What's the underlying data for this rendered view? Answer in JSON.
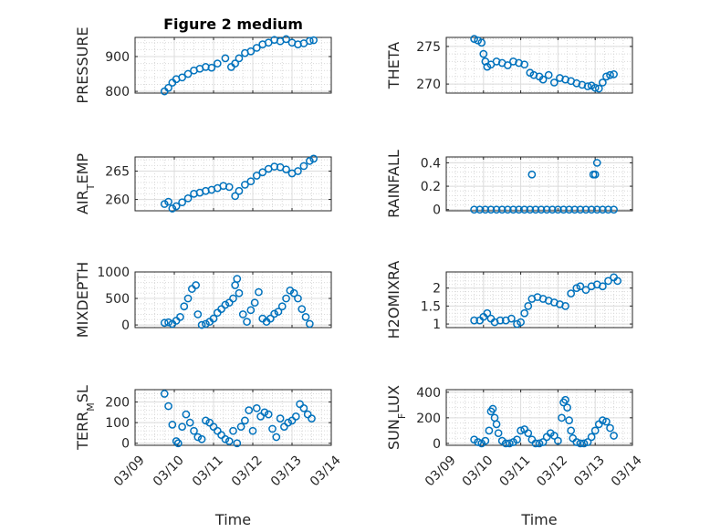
{
  "chart_data": [
    {
      "type": "scatter",
      "title": "Figure 2 medium",
      "ylabel": "PRESSURE",
      "ylabel_sub": "",
      "ylim": [
        795,
        955
      ],
      "yticks": [
        800,
        900
      ],
      "xlim": [
        0,
        5
      ],
      "xticks": [
        "03/09",
        "03/10",
        "03/11",
        "03/12",
        "03/13",
        "03/14"
      ],
      "show_xticklabels": false,
      "xlabel": "",
      "x": [
        0.75,
        0.85,
        0.95,
        1.05,
        1.2,
        1.35,
        1.5,
        1.65,
        1.8,
        1.95,
        2.1,
        2.3,
        2.45,
        2.55,
        2.65,
        2.8,
        2.95,
        3.1,
        3.25,
        3.4,
        3.55,
        3.7,
        3.85,
        4.0,
        4.15,
        4.3,
        4.45,
        4.55
      ],
      "values": [
        800,
        810,
        825,
        835,
        840,
        850,
        860,
        865,
        870,
        868,
        880,
        895,
        870,
        880,
        895,
        910,
        915,
        925,
        935,
        940,
        948,
        944,
        950,
        940,
        935,
        938,
        945,
        947
      ]
    },
    {
      "type": "scatter",
      "title": "",
      "ylabel": "THETA",
      "ylabel_sub": "",
      "ylim": [
        268.8,
        276.2
      ],
      "yticks": [
        270,
        275
      ],
      "xlim": [
        0,
        5
      ],
      "xticks": [
        "03/09",
        "03/10",
        "03/11",
        "03/12",
        "03/13",
        "03/14"
      ],
      "show_xticklabels": false,
      "xlabel": "",
      "x": [
        0.75,
        0.85,
        0.95,
        1.0,
        1.05,
        1.1,
        1.2,
        1.35,
        1.5,
        1.65,
        1.8,
        1.95,
        2.1,
        2.25,
        2.35,
        2.5,
        2.6,
        2.75,
        2.9,
        3.05,
        3.2,
        3.35,
        3.5,
        3.65,
        3.8,
        3.9,
        4.0,
        4.1,
        4.2,
        4.3,
        4.4,
        4.5
      ],
      "values": [
        276,
        275.8,
        275.5,
        274,
        273,
        272.3,
        272.6,
        273,
        272.8,
        272.5,
        273,
        272.8,
        272.6,
        271.5,
        271.2,
        271,
        270.6,
        271.2,
        270.2,
        270.8,
        270.6,
        270.4,
        270.1,
        269.9,
        269.7,
        269.8,
        269.5,
        269.4,
        270.2,
        271,
        271.2,
        271.3
      ]
    },
    {
      "type": "scatter",
      "title": "",
      "ylabel": "AIR",
      "ylabel_sub": "T",
      "ylabel_suffix": "EMP",
      "ylim": [
        258,
        267.5
      ],
      "yticks": [
        260,
        265
      ],
      "xlim": [
        0,
        5
      ],
      "xticks": [
        "03/09",
        "03/10",
        "03/11",
        "03/12",
        "03/13",
        "03/14"
      ],
      "show_xticklabels": false,
      "xlabel": "",
      "x": [
        0.75,
        0.85,
        0.95,
        1.05,
        1.2,
        1.35,
        1.5,
        1.65,
        1.8,
        1.95,
        2.1,
        2.25,
        2.4,
        2.55,
        2.65,
        2.8,
        2.95,
        3.1,
        3.25,
        3.4,
        3.55,
        3.7,
        3.85,
        4.0,
        4.15,
        4.3,
        4.45,
        4.55
      ],
      "values": [
        259.2,
        259.6,
        258.4,
        258.8,
        259.5,
        260.2,
        261,
        261.2,
        261.5,
        261.7,
        262,
        262.4,
        262.2,
        260.6,
        261.5,
        262.6,
        263.2,
        264.2,
        264.8,
        265.4,
        265.8,
        265.7,
        265.3,
        264.6,
        265,
        265.9,
        266.8,
        267.2
      ]
    },
    {
      "type": "scatter",
      "title": "",
      "ylabel": "RAINFALL",
      "ylabel_sub": "",
      "ylim": [
        -0.01,
        0.45
      ],
      "yticks": [
        0,
        0.2,
        0.4
      ],
      "xlim": [
        0,
        5
      ],
      "xticks": [
        "03/09",
        "03/10",
        "03/11",
        "03/12",
        "03/13",
        "03/14"
      ],
      "show_xticklabels": false,
      "xlabel": "",
      "x": [
        0.75,
        0.9,
        1.05,
        1.2,
        1.35,
        1.5,
        1.65,
        1.8,
        1.95,
        2.1,
        2.25,
        2.4,
        2.55,
        2.7,
        2.85,
        3.0,
        3.15,
        3.3,
        3.45,
        3.6,
        3.75,
        3.9,
        4.05,
        4.2,
        4.35,
        4.5,
        2.3,
        3.95,
        4.0,
        4.05
      ],
      "values": [
        0,
        0,
        0,
        0,
        0,
        0,
        0,
        0,
        0,
        0,
        0,
        0,
        0,
        0,
        0,
        0,
        0,
        0,
        0,
        0,
        0,
        0,
        0,
        0,
        0,
        0,
        0.3,
        0.3,
        0.3,
        0.4
      ]
    },
    {
      "type": "scatter",
      "title": "",
      "ylabel": "MIXDEPTH",
      "ylabel_sub": "",
      "ylim": [
        -50,
        1000
      ],
      "yticks": [
        0,
        500,
        1000
      ],
      "xlim": [
        0,
        5
      ],
      "xticks": [
        "03/09",
        "03/10",
        "03/11",
        "03/12",
        "03/13",
        "03/14"
      ],
      "show_xticklabels": false,
      "xlabel": "",
      "x": [
        0.75,
        0.85,
        0.95,
        1.05,
        1.15,
        1.25,
        1.35,
        1.45,
        1.55,
        1.6,
        1.7,
        1.8,
        1.9,
        2.0,
        2.1,
        2.2,
        2.3,
        2.4,
        2.5,
        2.55,
        2.6,
        2.65,
        2.75,
        2.85,
        2.95,
        3.05,
        3.15,
        3.25,
        3.35,
        3.45,
        3.55,
        3.65,
        3.75,
        3.85,
        3.95,
        4.05,
        4.15,
        4.25,
        4.35,
        4.45
      ],
      "values": [
        40,
        50,
        20,
        80,
        150,
        350,
        500,
        680,
        750,
        200,
        0,
        20,
        60,
        120,
        230,
        300,
        380,
        420,
        500,
        750,
        870,
        600,
        200,
        60,
        280,
        420,
        620,
        120,
        60,
        120,
        210,
        250,
        350,
        500,
        650,
        600,
        500,
        300,
        150,
        20
      ]
    },
    {
      "type": "scatter",
      "title": "",
      "ylabel": "H2OMIXRA",
      "ylabel_sub": "",
      "ylim": [
        0.9,
        2.45
      ],
      "yticks": [
        1,
        1.5,
        2
      ],
      "xlim": [
        0,
        5
      ],
      "xticks": [
        "03/09",
        "03/10",
        "03/11",
        "03/12",
        "03/13",
        "03/14"
      ],
      "show_xticklabels": false,
      "xlabel": "",
      "x": [
        0.75,
        0.9,
        1.0,
        1.1,
        1.2,
        1.3,
        1.45,
        1.6,
        1.75,
        1.9,
        2.0,
        2.1,
        2.2,
        2.3,
        2.45,
        2.6,
        2.75,
        2.9,
        3.05,
        3.2,
        3.35,
        3.5,
        3.6,
        3.75,
        3.9,
        4.05,
        4.2,
        4.35,
        4.5,
        4.6
      ],
      "values": [
        1.1,
        1.1,
        1.2,
        1.3,
        1.15,
        1.05,
        1.1,
        1.1,
        1.15,
        1.0,
        1.05,
        1.3,
        1.5,
        1.7,
        1.75,
        1.7,
        1.65,
        1.6,
        1.55,
        1.5,
        1.85,
        2.0,
        2.05,
        1.95,
        2.05,
        2.1,
        2.05,
        2.2,
        2.3,
        2.2
      ]
    },
    {
      "type": "scatter",
      "title": "",
      "ylabel": "TERR",
      "ylabel_sub": "M",
      "ylabel_suffix": "SL",
      "ylim": [
        -10,
        260
      ],
      "yticks": [
        0,
        100,
        200
      ],
      "xlim": [
        0,
        5
      ],
      "xticks": [
        "03/09",
        "03/10",
        "03/11",
        "03/12",
        "03/13",
        "03/14"
      ],
      "show_xticklabels": true,
      "xlabel": "Time",
      "x": [
        0.75,
        0.85,
        0.95,
        1.05,
        1.1,
        1.2,
        1.3,
        1.4,
        1.5,
        1.6,
        1.7,
        1.8,
        1.9,
        2.0,
        2.1,
        2.2,
        2.3,
        2.4,
        2.5,
        2.6,
        2.7,
        2.8,
        2.9,
        3.0,
        3.1,
        3.2,
        3.3,
        3.4,
        3.5,
        3.6,
        3.7,
        3.8,
        3.9,
        4.0,
        4.1,
        4.2,
        4.3,
        4.4,
        4.5
      ],
      "values": [
        240,
        180,
        90,
        10,
        0,
        80,
        140,
        100,
        60,
        30,
        20,
        110,
        100,
        80,
        60,
        40,
        20,
        10,
        60,
        0,
        80,
        110,
        160,
        60,
        170,
        130,
        150,
        140,
        70,
        30,
        120,
        80,
        100,
        110,
        130,
        190,
        170,
        140,
        120
      ]
    },
    {
      "type": "scatter",
      "title": "",
      "ylabel": "SUN",
      "ylabel_sub": "F",
      "ylabel_suffix": "LUX",
      "ylim": [
        -15,
        420
      ],
      "yticks": [
        0,
        200,
        400
      ],
      "xlim": [
        0,
        5
      ],
      "xticks": [
        "03/09",
        "03/10",
        "03/11",
        "03/12",
        "03/13",
        "03/14"
      ],
      "show_xticklabels": true,
      "xlabel": "Time",
      "x": [
        0.75,
        0.85,
        0.95,
        1.05,
        1.15,
        1.2,
        1.25,
        1.3,
        1.35,
        1.4,
        1.5,
        1.6,
        1.7,
        1.8,
        1.9,
        2.0,
        2.1,
        2.2,
        2.3,
        2.4,
        2.5,
        2.6,
        2.7,
        2.8,
        2.9,
        3.0,
        3.1,
        3.15,
        3.2,
        3.25,
        3.3,
        3.35,
        3.4,
        3.5,
        3.6,
        3.7,
        3.8,
        3.9,
        4.0,
        4.1,
        4.2,
        4.3,
        4.4,
        4.5
      ],
      "values": [
        30,
        10,
        0,
        20,
        100,
        250,
        270,
        200,
        150,
        80,
        20,
        0,
        0,
        10,
        30,
        100,
        110,
        80,
        30,
        0,
        0,
        10,
        50,
        80,
        60,
        20,
        200,
        320,
        340,
        280,
        180,
        100,
        40,
        10,
        0,
        0,
        10,
        50,
        100,
        150,
        180,
        170,
        120,
        60
      ]
    }
  ]
}
